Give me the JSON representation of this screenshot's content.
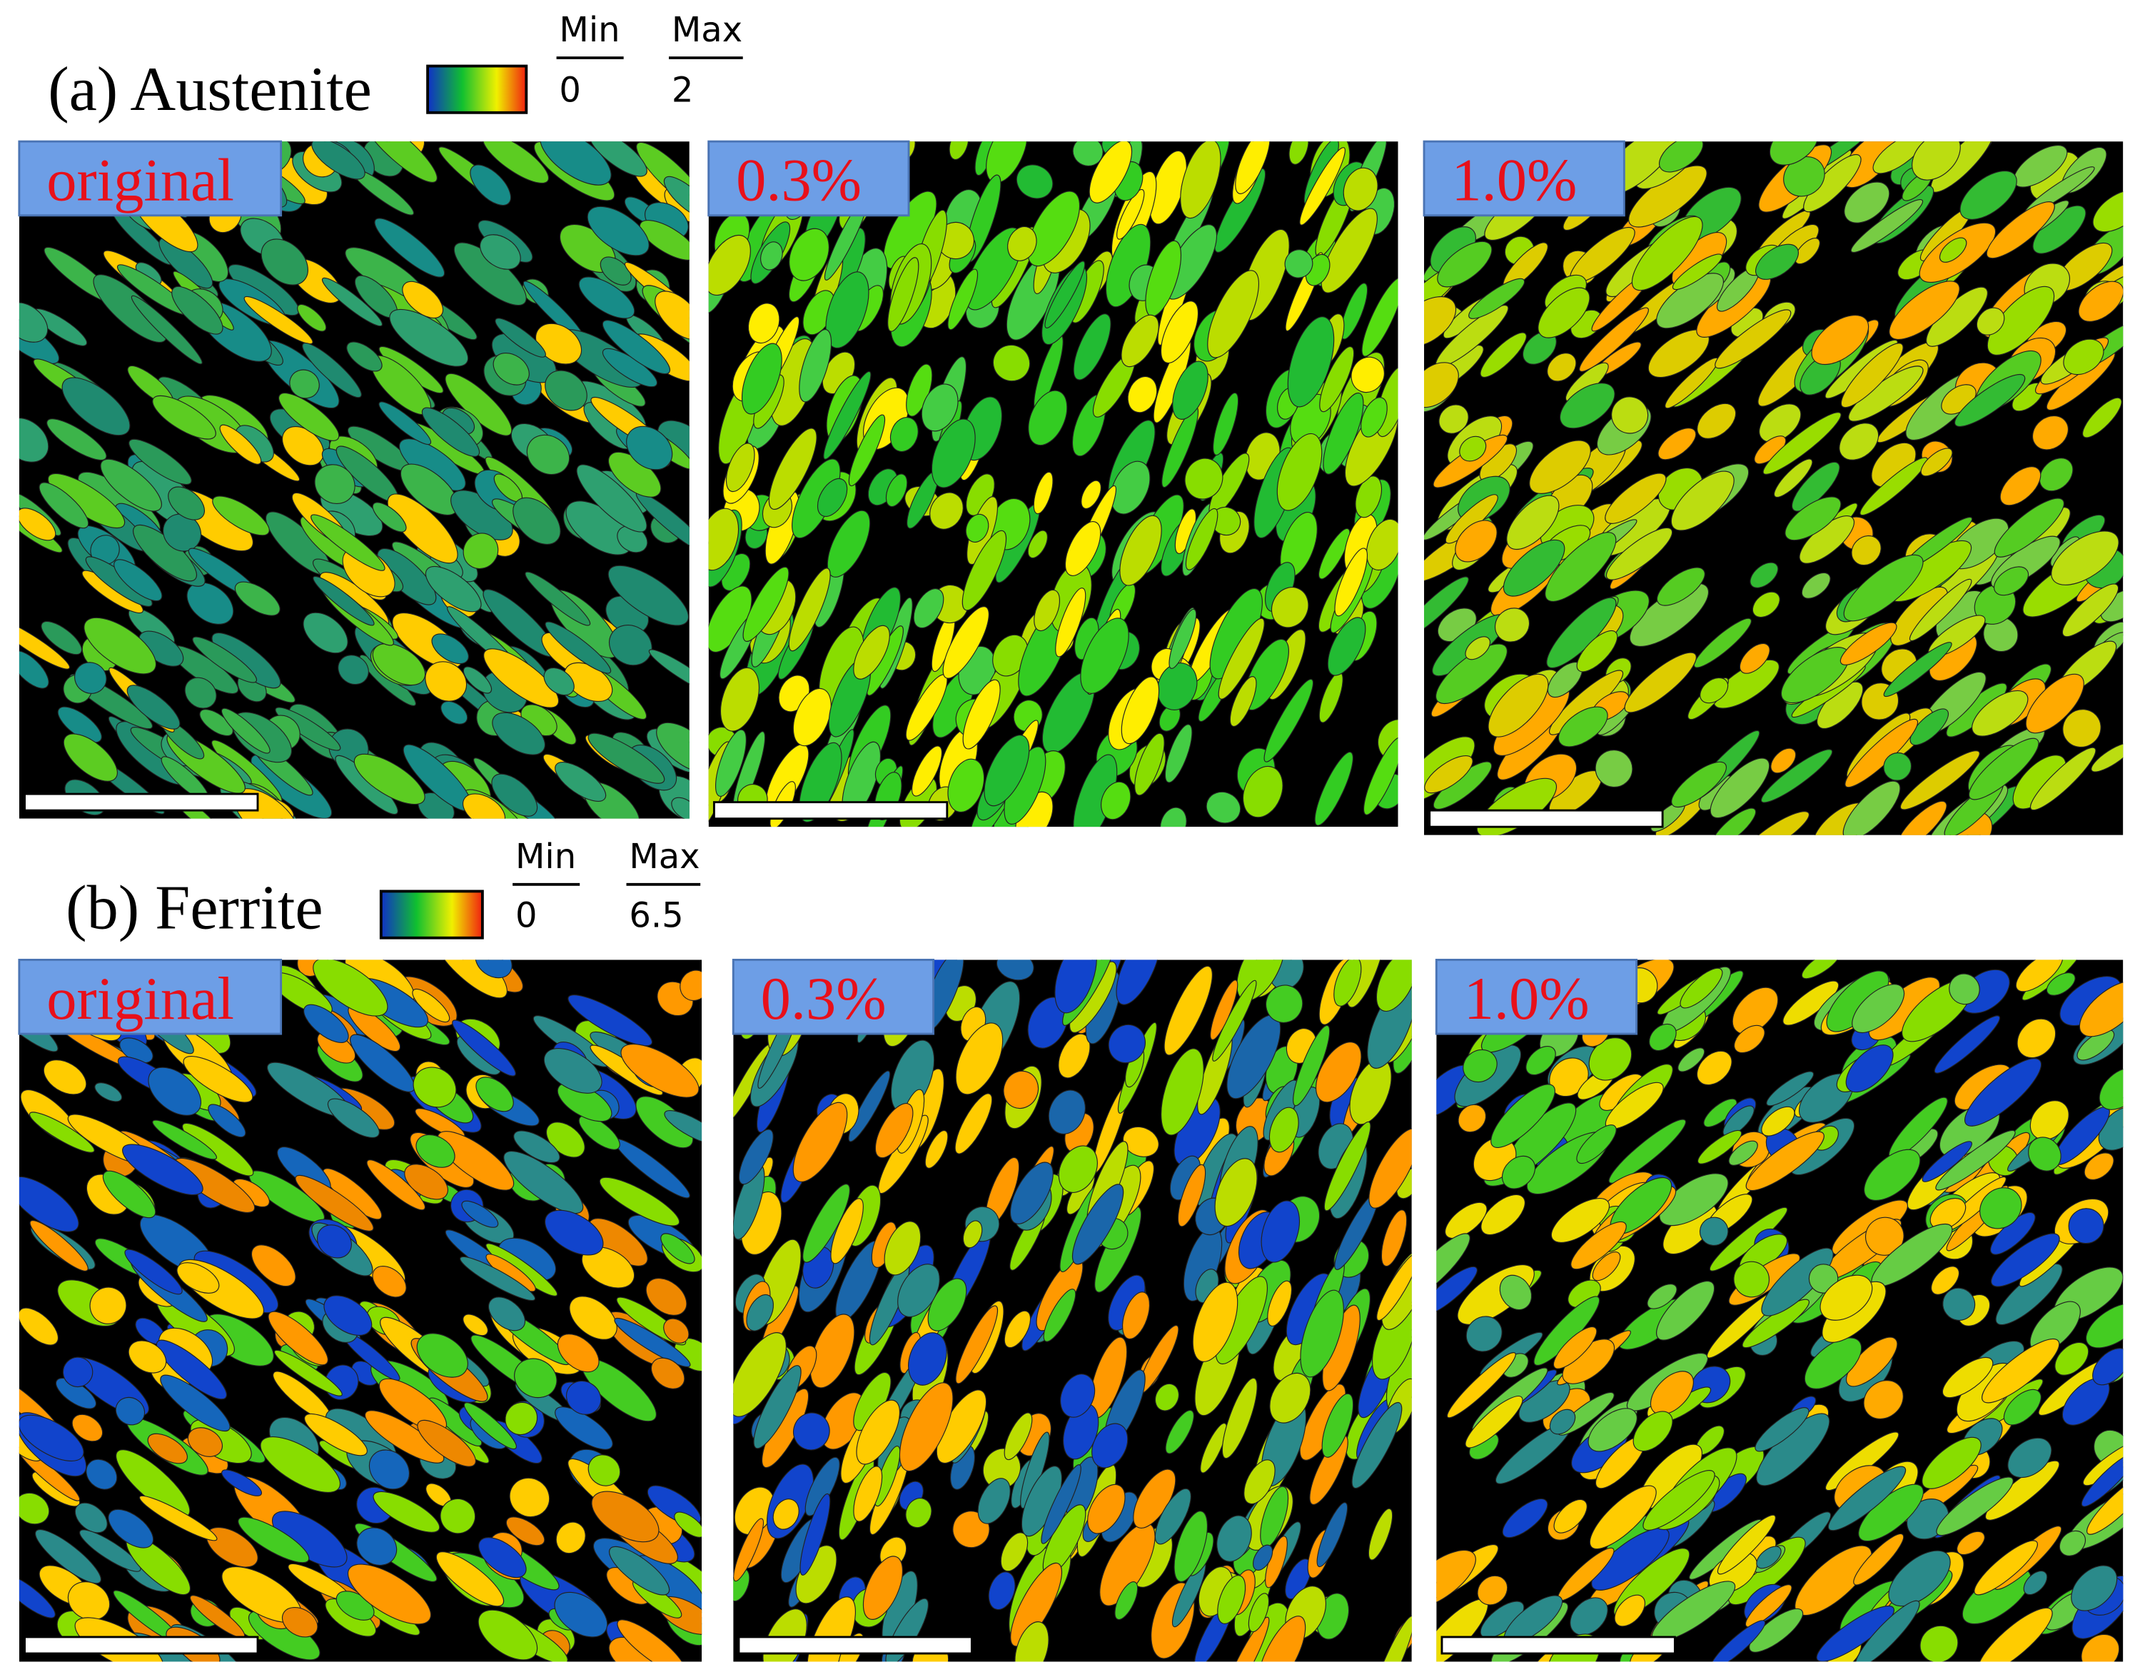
{
  "panels": [
    {
      "title": "(a) Austenite",
      "legend": {
        "min_label": "Min",
        "max_label": "Max",
        "min": 0,
        "max": 2
      },
      "maps": [
        {
          "label": "original"
        },
        {
          "label": "0.3%"
        },
        {
          "label": "1.0%"
        }
      ]
    },
    {
      "title": "(b) Ferrite",
      "legend": {
        "min_label": "Min",
        "max_label": "Max",
        "min": 0,
        "max": 6.5
      },
      "maps": [
        {
          "label": "original"
        },
        {
          "label": "0.3%"
        },
        {
          "label": "1.0%"
        }
      ]
    }
  ]
}
